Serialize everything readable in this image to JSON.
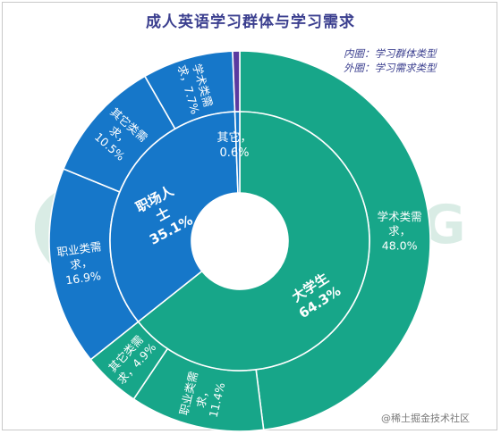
{
  "chart_data": {
    "type": "pie",
    "title": "成人英语学习群体与学习需求",
    "legend_note": [
      "内圈：学习群体类型",
      "外圈：学习需求类型"
    ],
    "inner_ring": [
      {
        "label": "大学生",
        "value": 64.3,
        "display": "64.3%",
        "color": "#17a689"
      },
      {
        "label": "职场人士",
        "value": 35.1,
        "display": "35.1%",
        "color": "#1677c9"
      },
      {
        "label": "其它",
        "value": 0.6,
        "display": "0.6%",
        "color": "#5a3aa0"
      }
    ],
    "outer_ring": [
      {
        "label": "学术类需求",
        "value": 48.0,
        "display": "48.0%",
        "color": "#17a689"
      },
      {
        "label": "职业类需求",
        "value": 11.4,
        "display": "11.4%",
        "color": "#17a689"
      },
      {
        "label": "其它类需求",
        "value": 4.9,
        "display": "4.9%",
        "color": "#17a689"
      },
      {
        "label": "职业类需求",
        "value": 16.9,
        "display": "16.9%",
        "color": "#1677c9"
      },
      {
        "label": "其它类需求",
        "value": 10.5,
        "display": "10.5%",
        "color": "#1677c9"
      },
      {
        "label": "学术类需求",
        "value": 7.7,
        "display": "7.7%",
        "color": "#1677c9"
      },
      {
        "label": "其它",
        "value": 0.6,
        "display": "",
        "color": "#5a3aa0"
      }
    ]
  },
  "watermark": "JIGUANG",
  "credit": "@稀土掘金技术社区"
}
